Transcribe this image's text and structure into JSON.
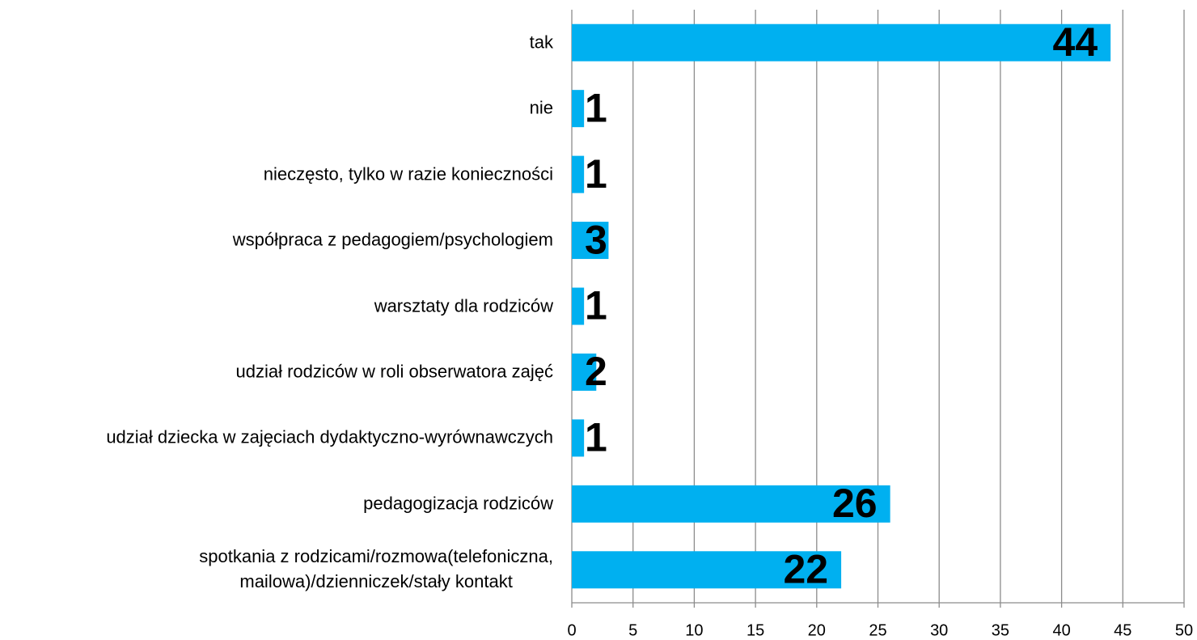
{
  "chart_data": {
    "type": "barh",
    "categories": [
      "tak",
      "nie",
      "nieczęsto, tylko w razie konieczności",
      "współpraca z pedagogiem/psychologiem",
      "warsztaty dla rodziców",
      "udział rodziców w roli obserwatora zajęć",
      "udział dziecka w zajęciach dydaktyczno-wyrównawczych",
      "pedagogizacja rodziców",
      "spotkania z rodzicami/rozmowa(telefoniczna,\nmailowa)/dzienniczek/stały kontakt"
    ],
    "values": [
      44,
      1,
      1,
      3,
      1,
      2,
      1,
      26,
      22
    ],
    "color": "#00b0f0",
    "xlim": [
      0,
      50
    ],
    "xticks": [
      0,
      5,
      10,
      15,
      20,
      25,
      30,
      35,
      40,
      45,
      50
    ],
    "grid": true
  }
}
